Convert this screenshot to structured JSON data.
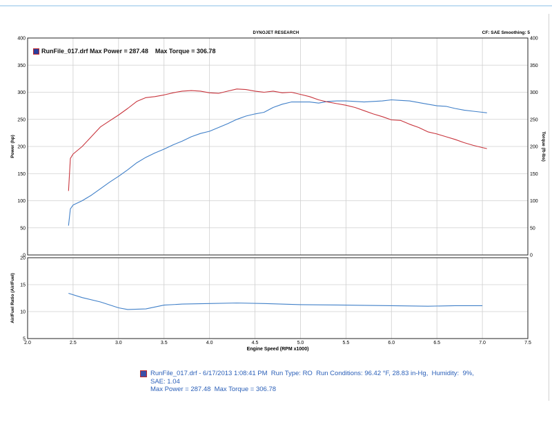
{
  "header": {
    "title": "DYNOJET RESEARCH",
    "right": "CF: SAE  Smoothing: 5"
  },
  "legend": {
    "text": "RunFile_017.drf Max Power = 287.48    Max Torque = 306.78"
  },
  "footer": {
    "line1": "RunFile_017.drf - 6/17/2013 1:08:41 PM  Run Type: RO  Run Conditions: 96.42 °F, 28.83 in-Hg,  Humidity:  9%,",
    "line2": "SAE: 1.04",
    "line3": "Max Power = 287.48  Max Torque = 306.78"
  },
  "colors": {
    "power": "#3f7fc8",
    "torque": "#c8343c",
    "afr": "#3f7fc8",
    "grid": "#cfcfcf"
  },
  "chart_data": [
    {
      "type": "line",
      "ylabel": "Power (hp)",
      "y2label": "Torque (ft-lbs)",
      "xlim": [
        2.0,
        7.5
      ],
      "ylim": [
        0,
        400
      ],
      "y2lim": [
        0,
        400
      ],
      "yticks": [
        "0",
        "50",
        "100",
        "150",
        "200",
        "250",
        "300",
        "350",
        "400"
      ],
      "y2ticks": [
        "0",
        "50",
        "100",
        "150",
        "200",
        "250",
        "300",
        "350",
        "400"
      ],
      "grid": true,
      "series": [
        {
          "key": "power",
          "x": [
            2.45,
            2.47,
            2.5,
            2.6,
            2.7,
            2.8,
            2.9,
            3.0,
            3.1,
            3.2,
            3.3,
            3.4,
            3.5,
            3.6,
            3.7,
            3.8,
            3.9,
            4.0,
            4.1,
            4.2,
            4.3,
            4.4,
            4.5,
            4.6,
            4.7,
            4.8,
            4.9,
            5.0,
            5.1,
            5.2,
            5.3,
            5.4,
            5.5,
            5.6,
            5.7,
            5.8,
            5.9,
            6.0,
            6.1,
            6.2,
            6.3,
            6.4,
            6.5,
            6.6,
            6.7,
            6.8,
            6.9,
            7.0,
            7.05
          ],
          "values": [
            54,
            85,
            92,
            100,
            110,
            122,
            134,
            145,
            157,
            170,
            180,
            188,
            195,
            203,
            210,
            218,
            224,
            228,
            235,
            242,
            250,
            256,
            260,
            263,
            272,
            278,
            282,
            282,
            282,
            280,
            283,
            284,
            284,
            283,
            282,
            283,
            284,
            286,
            285,
            284,
            281,
            278,
            275,
            274,
            270,
            267,
            265,
            263,
            262
          ]
        },
        {
          "key": "torque",
          "x": [
            2.45,
            2.47,
            2.5,
            2.6,
            2.7,
            2.8,
            2.9,
            3.0,
            3.1,
            3.2,
            3.3,
            3.4,
            3.5,
            3.6,
            3.7,
            3.8,
            3.9,
            4.0,
            4.1,
            4.2,
            4.3,
            4.4,
            4.5,
            4.6,
            4.7,
            4.8,
            4.9,
            5.0,
            5.1,
            5.2,
            5.3,
            5.4,
            5.5,
            5.6,
            5.7,
            5.8,
            5.9,
            6.0,
            6.1,
            6.2,
            6.3,
            6.4,
            6.5,
            6.6,
            6.7,
            6.8,
            6.9,
            7.0,
            7.05
          ],
          "values": [
            118,
            178,
            186,
            200,
            218,
            236,
            247,
            258,
            270,
            283,
            290,
            292,
            295,
            299,
            302,
            303,
            302,
            299,
            298,
            302,
            306,
            305,
            302,
            300,
            302,
            299,
            300,
            296,
            292,
            286,
            282,
            279,
            276,
            272,
            266,
            260,
            255,
            249,
            248,
            241,
            235,
            227,
            223,
            218,
            213,
            207,
            202,
            198,
            196
          ]
        }
      ]
    },
    {
      "type": "line",
      "ylabel": "Air/Fuel Ratio (Air/Fuel)",
      "xlabel": "Engine Speed (RPM x1000)",
      "xlim": [
        2.0,
        7.5
      ],
      "ylim": [
        5,
        20
      ],
      "xticks": [
        "2.0",
        "2.5",
        "3.0",
        "3.5",
        "4.0",
        "4.5",
        "5.0",
        "5.5",
        "6.0",
        "6.5",
        "7.0",
        "7.5"
      ],
      "yticks": [
        "5",
        "10",
        "15",
        "20"
      ],
      "grid": true,
      "series": [
        {
          "key": "afr",
          "x": [
            2.45,
            2.6,
            2.8,
            3.0,
            3.1,
            3.3,
            3.5,
            3.7,
            4.0,
            4.3,
            4.6,
            5.0,
            5.5,
            6.0,
            6.4,
            6.7,
            7.0
          ],
          "values": [
            13.4,
            12.6,
            11.8,
            10.7,
            10.4,
            10.5,
            11.2,
            11.4,
            11.5,
            11.6,
            11.5,
            11.3,
            11.2,
            11.1,
            11.0,
            11.1,
            11.1
          ]
        }
      ]
    }
  ]
}
